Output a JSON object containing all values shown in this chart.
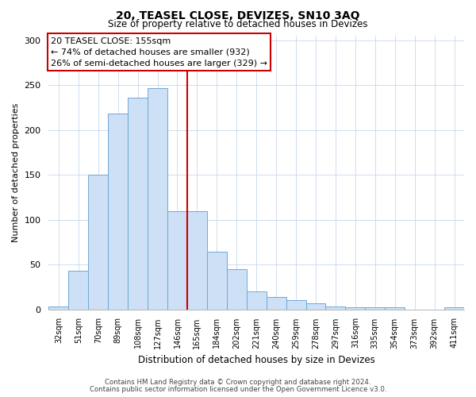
{
  "title": "20, TEASEL CLOSE, DEVIZES, SN10 3AQ",
  "subtitle": "Size of property relative to detached houses in Devizes",
  "xlabel": "Distribution of detached houses by size in Devizes",
  "ylabel": "Number of detached properties",
  "bar_labels": [
    "32sqm",
    "51sqm",
    "70sqm",
    "89sqm",
    "108sqm",
    "127sqm",
    "146sqm",
    "165sqm",
    "184sqm",
    "202sqm",
    "221sqm",
    "240sqm",
    "259sqm",
    "278sqm",
    "297sqm",
    "316sqm",
    "335sqm",
    "354sqm",
    "373sqm",
    "392sqm",
    "411sqm"
  ],
  "bar_values": [
    3,
    43,
    150,
    218,
    236,
    247,
    109,
    109,
    64,
    45,
    20,
    14,
    10,
    7,
    3,
    2,
    2,
    2,
    0,
    0,
    2
  ],
  "bar_color": "#cde0f5",
  "bar_edge_color": "#6fa8d6",
  "vline_x": 6.5,
  "vline_color": "#cc0000",
  "annotation_line1": "20 TEASEL CLOSE: 155sqm",
  "annotation_line2": "← 74% of detached houses are smaller (932)",
  "annotation_line3": "26% of semi-detached houses are larger (329) →",
  "annotation_box_color": "#ffffff",
  "annotation_box_edge": "#cc0000",
  "ylim": [
    0,
    305
  ],
  "yticks": [
    0,
    50,
    100,
    150,
    200,
    250,
    300
  ],
  "footer1": "Contains HM Land Registry data © Crown copyright and database right 2024.",
  "footer2": "Contains public sector information licensed under the Open Government Licence v3.0."
}
